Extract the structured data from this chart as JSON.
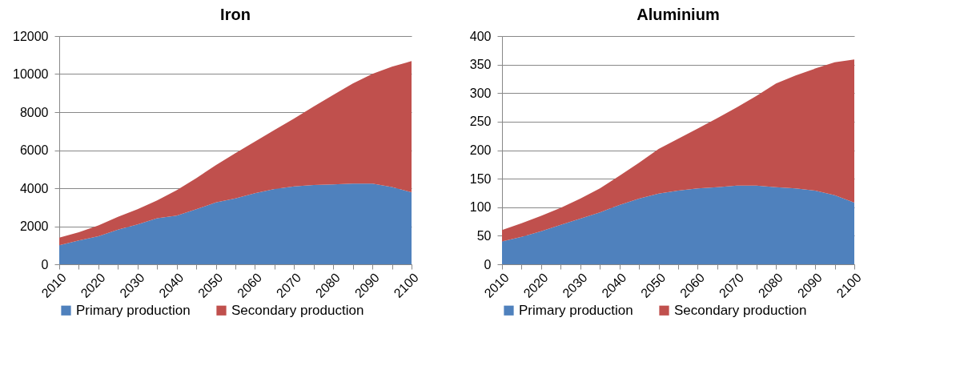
{
  "chart_data": [
    {
      "type": "area",
      "title": "Iron",
      "stacked": true,
      "grid": "y",
      "legend": "bottom",
      "x": [
        2010,
        2015,
        2020,
        2025,
        2030,
        2035,
        2040,
        2045,
        2050,
        2055,
        2060,
        2065,
        2070,
        2075,
        2080,
        2085,
        2090,
        2095,
        2100
      ],
      "xlim": [
        2010,
        2100
      ],
      "xticks": [
        2010,
        {
          "value": 2015,
          "label": null
        },
        2020,
        {
          "value": 2025,
          "label": null
        },
        2030,
        {
          "value": 2035,
          "label": null
        },
        2040,
        {
          "value": 2045,
          "label": null
        },
        2050,
        {
          "value": 2055,
          "label": null
        },
        2060,
        {
          "value": 2065,
          "label": null
        },
        2070,
        {
          "value": 2075,
          "label": null
        },
        2080,
        {
          "value": 2085,
          "label": null
        },
        2090,
        {
          "value": 2095,
          "label": null
        },
        2100
      ],
      "ylim": [
        0,
        12000
      ],
      "yticks": [
        0,
        2000,
        4000,
        6000,
        8000,
        10000,
        12000
      ],
      "series": [
        {
          "name": "Primary production",
          "color": "#4f81bd",
          "values": [
            1000,
            1250,
            1470,
            1820,
            2100,
            2420,
            2560,
            2890,
            3250,
            3460,
            3740,
            3960,
            4100,
            4170,
            4200,
            4240,
            4240,
            4060,
            3790
          ]
        },
        {
          "name": "Secondary production",
          "color": "#c0504d",
          "values": [
            400,
            430,
            570,
            670,
            790,
            940,
            1330,
            1640,
            1960,
            2380,
            2710,
            3100,
            3560,
            4130,
            4710,
            5270,
            5770,
            6330,
            6890
          ]
        }
      ]
    },
    {
      "type": "area",
      "title": "Aluminium",
      "stacked": true,
      "grid": "y",
      "legend": "bottom",
      "x": [
        2010,
        2015,
        2020,
        2025,
        2030,
        2035,
        2040,
        2045,
        2050,
        2055,
        2060,
        2065,
        2070,
        2075,
        2080,
        2085,
        2090,
        2095,
        2100
      ],
      "xlim": [
        2010,
        2100
      ],
      "xticks": [
        2010,
        {
          "value": 2015,
          "label": null
        },
        2020,
        {
          "value": 2025,
          "label": null
        },
        2030,
        {
          "value": 2035,
          "label": null
        },
        2040,
        {
          "value": 2045,
          "label": null
        },
        2050,
        {
          "value": 2055,
          "label": null
        },
        2060,
        {
          "value": 2065,
          "label": null
        },
        2070,
        {
          "value": 2075,
          "label": null
        },
        2080,
        {
          "value": 2085,
          "label": null
        },
        2090,
        {
          "value": 2095,
          "label": null
        },
        2100
      ],
      "ylim": [
        0,
        400
      ],
      "yticks": [
        0,
        50,
        100,
        150,
        200,
        250,
        300,
        350,
        400
      ],
      "series": [
        {
          "name": "Primary production",
          "color": "#4f81bd",
          "values": [
            40,
            48,
            58,
            69,
            80,
            91,
            104,
            115,
            124,
            129,
            133,
            135,
            138,
            138,
            135,
            133,
            129,
            121,
            108
          ]
        },
        {
          "name": "Secondary production",
          "color": "#c0504d",
          "values": [
            20,
            24,
            27,
            30,
            35,
            42,
            51,
            63,
            78,
            91,
            105,
            121,
            137,
            157,
            182,
            198,
            214,
            233,
            251
          ]
        }
      ]
    }
  ]
}
